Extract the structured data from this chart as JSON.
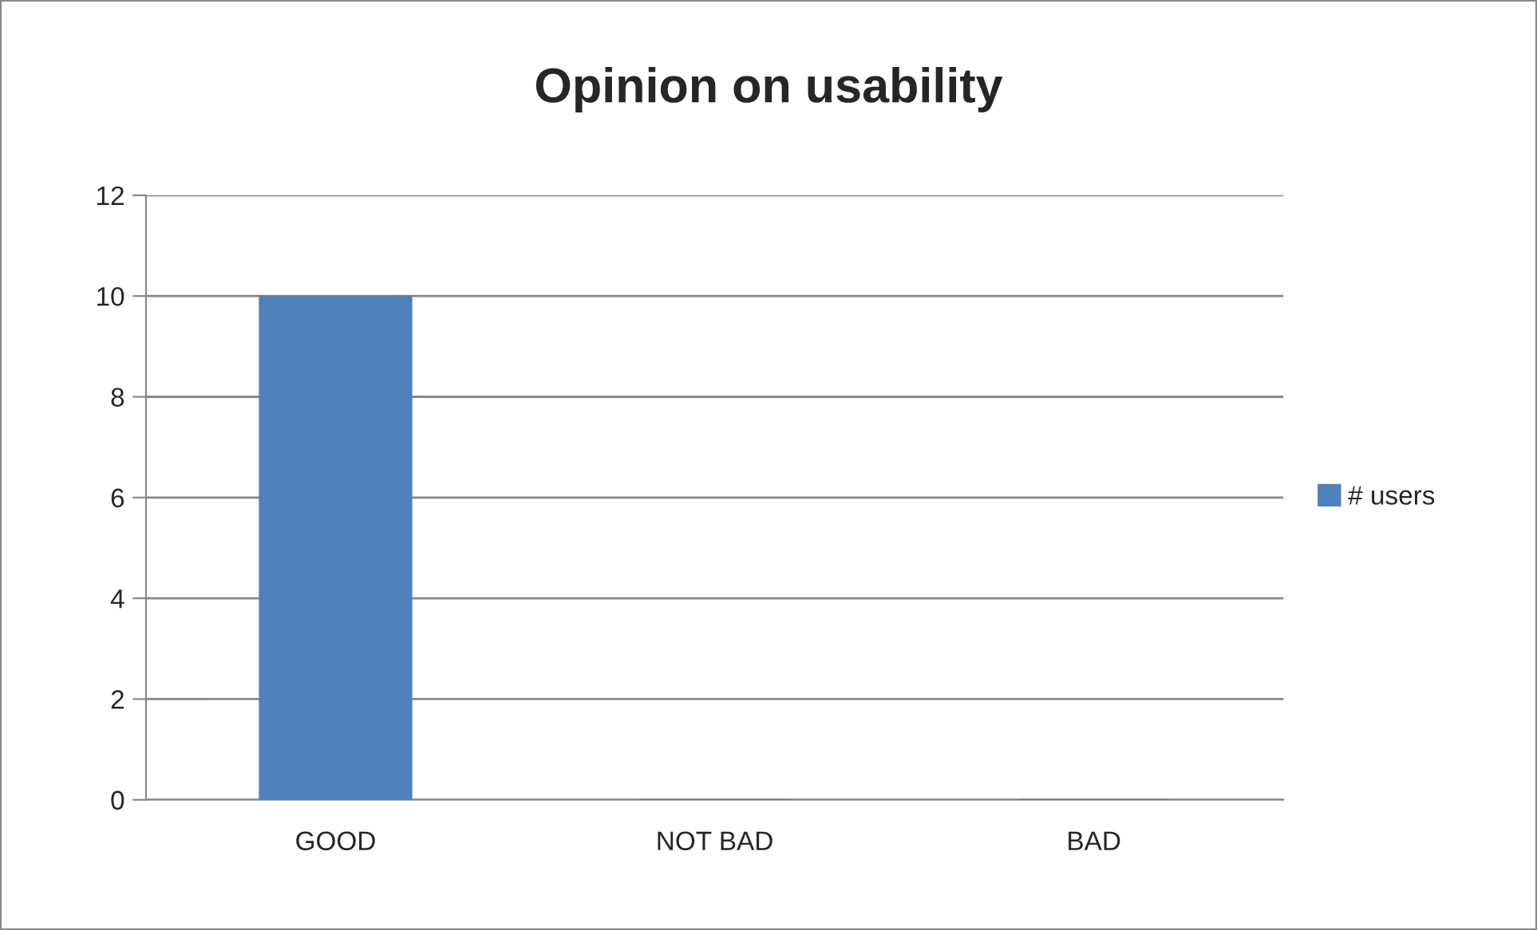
{
  "chart_data": {
    "type": "bar",
    "title": "Opinion on usability",
    "categories": [
      "GOOD",
      "NOT BAD",
      "BAD"
    ],
    "series": [
      {
        "name": "# users",
        "color": "#4f81bd",
        "values": [
          10,
          0,
          0
        ]
      }
    ],
    "ylim": [
      0,
      12
    ],
    "yticks": [
      0,
      2,
      4,
      6,
      8,
      10,
      12
    ],
    "grid": "y",
    "legend": "right"
  }
}
